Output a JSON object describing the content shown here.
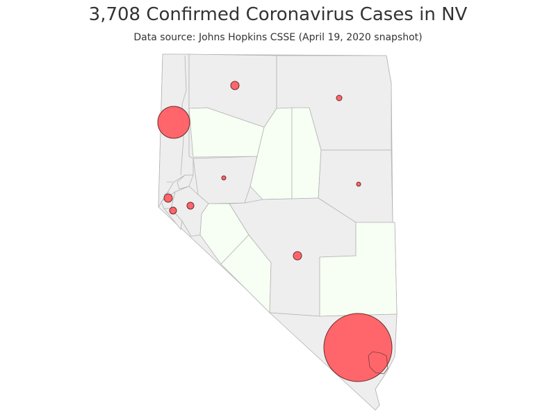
{
  "title": "3,708 Confirmed Coronavirus Cases in NV",
  "subtitle": "Data source: Johns Hopkins CSSE (April 19, 2020 snapshot)",
  "colors": {
    "county_with_cases": "#eeeeee",
    "county_no_cases": "#f7fff4",
    "county_border": "#b3b3b3",
    "bubble_fill": "#ff5a5f",
    "bubble_stroke": "#6b2b2b"
  }
}
